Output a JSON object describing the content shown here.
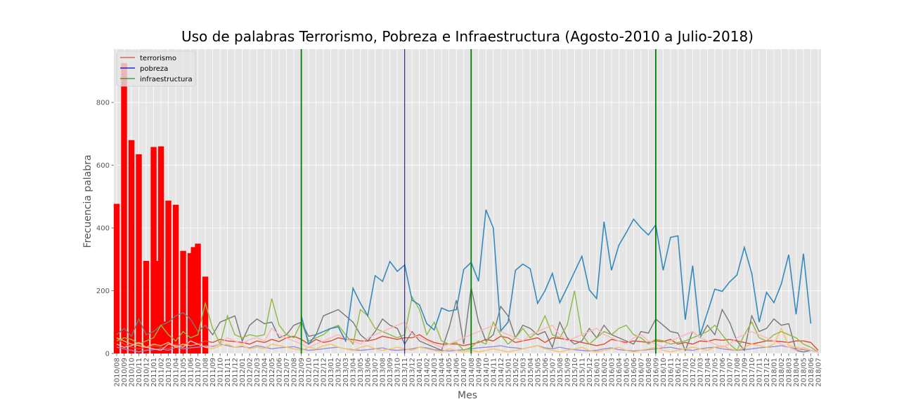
{
  "chart_data": {
    "type": "line",
    "title": "Uso de palabras Terrorismo, Pobreza e Infraestructura (Agosto-2010 a Julio-2018)",
    "xlabel": "Mes",
    "ylabel": "Frecuencia palabra",
    "ylim": [
      0,
      970
    ],
    "yticks": [
      0,
      200,
      400,
      600,
      800
    ],
    "grid": true,
    "legend_position": "top-left",
    "x_start": "2010/08",
    "x_end": "2018/07",
    "legend": [
      {
        "name": "terrorismo",
        "color": "#e24a33"
      },
      {
        "name": "pobreza",
        "color": "#0000cc"
      },
      {
        "name": "infraestructura",
        "color": "#2a8a2a"
      }
    ],
    "vlines": [
      {
        "x": "2012/09",
        "color": "#008000"
      },
      {
        "x": "2013/11",
        "color": "#00008b"
      },
      {
        "x": "2014/08",
        "color": "#008000"
      },
      {
        "x": "2016/09",
        "color": "#008000"
      }
    ],
    "bars": {
      "color": "#ff0000",
      "points": [
        {
          "x": "2010/08",
          "y": 477
        },
        {
          "x": "2010/09",
          "y": 925
        },
        {
          "x": "2010/10",
          "y": 680
        },
        {
          "x": "2010/11",
          "y": 635
        },
        {
          "x": "2010/12",
          "y": 295
        },
        {
          "x": "2011/01",
          "y": 658
        },
        {
          "x": "2011/01",
          "y": 295
        },
        {
          "x": "2011/02",
          "y": 660
        },
        {
          "x": "2011/02",
          "y": 102
        },
        {
          "x": "2011/03",
          "y": 487
        },
        {
          "x": "2011/04",
          "y": 474
        },
        {
          "x": "2011/05",
          "y": 327
        },
        {
          "x": "2011/06",
          "y": 320
        },
        {
          "x": "2011/06",
          "y": 339
        },
        {
          "x": "2011/07",
          "y": 350
        },
        {
          "x": "2011/08",
          "y": 245
        }
      ]
    },
    "series": [
      {
        "color": "#348abd",
        "values": [
          0,
          0,
          0,
          0,
          0,
          0,
          0,
          0,
          0,
          0,
          0,
          0,
          0,
          0,
          0,
          0,
          0,
          0,
          0,
          0,
          0,
          0,
          0,
          0,
          0,
          0,
          0,
          0,
          0,
          0,
          0,
          0,
          0,
          0,
          0,
          0,
          0,
          0,
          0,
          0,
          0,
          0,
          0,
          0,
          0,
          0,
          0,
          0,
          0,
          0,
          0,
          0,
          0,
          0,
          0,
          0,
          0,
          0,
          0,
          0,
          0,
          0,
          0,
          0,
          0,
          0,
          0,
          0,
          0,
          0,
          0,
          0,
          0,
          0,
          0,
          0,
          0,
          0,
          0,
          0,
          0,
          0,
          0,
          0,
          0,
          0,
          0,
          0,
          0,
          0,
          0,
          0,
          0,
          0,
          0,
          0
        ]
      },
      {
        "color": "#e24a33",
        "values": [
          50,
          30,
          20,
          15,
          20,
          25,
          20,
          15,
          30,
          25,
          40,
          30,
          40,
          35,
          45,
          40,
          38,
          35,
          30,
          40,
          35,
          45,
          38,
          50,
          55,
          45,
          30,
          45,
          35,
          40,
          50,
          45,
          45,
          40,
          40,
          45,
          55,
          50,
          45,
          50,
          50,
          60,
          45,
          35,
          30,
          30,
          30,
          25,
          30,
          35,
          45,
          40,
          55,
          50,
          35,
          40,
          45,
          50,
          35,
          50,
          48,
          45,
          40,
          35,
          30,
          25,
          30,
          45,
          40,
          35,
          40,
          38,
          35,
          40,
          38,
          45,
          30,
          35,
          30,
          40,
          38,
          45,
          42,
          45,
          40,
          35,
          30,
          35,
          40,
          40,
          38,
          35,
          40,
          40,
          35,
          10
        ]
      },
      {
        "color": "#988ed5",
        "values": [
          20,
          15,
          10,
          5,
          10,
          12,
          15,
          10,
          20,
          15,
          18,
          20,
          25,
          22,
          30,
          25,
          20,
          22,
          18,
          25,
          20,
          15,
          18,
          20,
          22,
          15,
          10,
          12,
          15,
          18,
          20,
          15,
          12,
          10,
          12,
          15,
          18,
          12,
          10,
          12,
          15,
          20,
          18,
          12,
          10,
          8,
          10,
          12,
          15,
          18,
          20,
          22,
          25,
          20,
          18,
          15,
          20,
          25,
          18,
          15,
          20,
          15,
          12,
          10,
          8,
          10,
          15,
          18,
          12,
          10,
          8,
          10,
          12,
          15,
          18,
          20,
          15,
          12,
          10,
          15,
          18,
          20,
          15,
          12,
          10,
          12,
          15,
          18,
          20,
          22,
          25,
          20,
          15,
          12,
          10,
          5
        ]
      },
      {
        "color": "#777777",
        "values": [
          60,
          80,
          55,
          110,
          60,
          70,
          90,
          100,
          120,
          130,
          110,
          70,
          90,
          60,
          100,
          110,
          120,
          40,
          90,
          110,
          95,
          100,
          50,
          60,
          90,
          100,
          55,
          60,
          120,
          130,
          140,
          120,
          100,
          60,
          40,
          70,
          110,
          90,
          80,
          30,
          70,
          40,
          30,
          20,
          10,
          80,
          170,
          30,
          210,
          100,
          40,
          60,
          150,
          120,
          50,
          90,
          80,
          60,
          70,
          20,
          100,
          50,
          30,
          40,
          80,
          50,
          90,
          60,
          50,
          40,
          30,
          70,
          65,
          110,
          90,
          70,
          65,
          10,
          70,
          50,
          90,
          60,
          140,
          100,
          40,
          10,
          120,
          70,
          80,
          110,
          90,
          95,
          10,
          5,
          10,
          5
        ]
      },
      {
        "color": "#fbc15e",
        "values": [
          50,
          40,
          30,
          25,
          20,
          30,
          25,
          35,
          20,
          30,
          25,
          30,
          20,
          15,
          25,
          30,
          20,
          25,
          15,
          20,
          15,
          30,
          25,
          20,
          15,
          10,
          20,
          15,
          25,
          30,
          20,
          15,
          10,
          20,
          25,
          15,
          10,
          15,
          20,
          15,
          10,
          20,
          15,
          10,
          5,
          15,
          10,
          5,
          10,
          5,
          10,
          15,
          10,
          5,
          10,
          15,
          20,
          25,
          15,
          10,
          5,
          10,
          15,
          20,
          10,
          5,
          10,
          15,
          20,
          10,
          5,
          10,
          15,
          20,
          10,
          5,
          10,
          15,
          20,
          15,
          10,
          20,
          25,
          15,
          10,
          20,
          30,
          25,
          20,
          30,
          80,
          25,
          20,
          15,
          10,
          5
        ]
      },
      {
        "color": "#8eba42",
        "values": [
          40,
          50,
          45,
          30,
          40,
          50,
          90,
          60,
          40,
          70,
          50,
          60,
          160,
          80,
          30,
          120,
          60,
          50,
          60,
          55,
          60,
          175,
          90,
          60,
          50,
          100,
          40,
          50,
          60,
          80,
          90,
          60,
          30,
          140,
          120,
          80,
          70,
          60,
          50,
          60,
          180,
          140,
          60,
          100,
          40,
          30,
          35,
          10,
          20,
          40,
          30,
          100,
          60,
          30,
          50,
          80,
          50,
          70,
          120,
          60,
          50,
          90,
          200,
          60,
          30,
          50,
          70,
          60,
          80,
          90,
          60,
          50,
          30,
          45,
          40,
          30,
          35,
          40,
          50,
          60,
          70,
          90,
          60,
          30,
          10,
          60,
          100,
          50,
          40,
          60,
          70,
          60,
          50,
          30,
          20,
          5
        ]
      },
      {
        "color": "#ffb5b8",
        "values": [
          30,
          20,
          25,
          35,
          20,
          15,
          10,
          30,
          25,
          20,
          40,
          30,
          20,
          25,
          30,
          50,
          40,
          30,
          45,
          50,
          40,
          80,
          60,
          50,
          40,
          30,
          20,
          30,
          40,
          50,
          60,
          45,
          40,
          30,
          50,
          60,
          70,
          80,
          90,
          100,
          60,
          50,
          40,
          30,
          20,
          30,
          40,
          50,
          60,
          70,
          80,
          90,
          70,
          60,
          50,
          40,
          60,
          70,
          80,
          90,
          60,
          40,
          50,
          60,
          70,
          80,
          60,
          50,
          40,
          30,
          50,
          60,
          40,
          30,
          20,
          40,
          50,
          60,
          70,
          50,
          40,
          30,
          20,
          30,
          50,
          60,
          70,
          60,
          50,
          40,
          30,
          20,
          10,
          20,
          10,
          5
        ]
      },
      {
        "color": "#348abd",
        "values": [
          0,
          0,
          0,
          0,
          0,
          0,
          0,
          0,
          0,
          0,
          0,
          0,
          0,
          0,
          0,
          0,
          0,
          0,
          0,
          0,
          0,
          0,
          0,
          0,
          0,
          0,
          0,
          0,
          0,
          0,
          0,
          0,
          0,
          0,
          0,
          0,
          0,
          0,
          0,
          0,
          0,
          0,
          0,
          0,
          0,
          0,
          0,
          0,
          0,
          0,
          0,
          0,
          0,
          0,
          0,
          0,
          0,
          0,
          0,
          0,
          0,
          0,
          0,
          0,
          0,
          0,
          0,
          0,
          0,
          0,
          0,
          0,
          0,
          0,
          0,
          0,
          0,
          0,
          0,
          0,
          0,
          0,
          0,
          0,
          0,
          0,
          0,
          0,
          0,
          0,
          0,
          0,
          0,
          0,
          0,
          0
        ]
      }
    ],
    "blue_series": {
      "color": "#348abd",
      "points": [
        {
          "x": "2012/09",
          "y": 120
        },
        {
          "x": "2012/10",
          "y": 30
        },
        {
          "x": "2012/11",
          "y": 60
        },
        {
          "x": "2012/12",
          "y": 70
        },
        {
          "x": "2013/01",
          "y": 80
        },
        {
          "x": "2013/02",
          "y": 85
        },
        {
          "x": "2013/03",
          "y": 40
        },
        {
          "x": "2013/04",
          "y": 208
        },
        {
          "x": "2013/05",
          "y": 160
        },
        {
          "x": "2013/06",
          "y": 120
        },
        {
          "x": "2013/07",
          "y": 248
        },
        {
          "x": "2013/08",
          "y": 230
        },
        {
          "x": "2013/09",
          "y": 293
        },
        {
          "x": "2013/10",
          "y": 262
        },
        {
          "x": "2013/11",
          "y": 282
        },
        {
          "x": "2013/12",
          "y": 170
        },
        {
          "x": "2014/01",
          "y": 155
        },
        {
          "x": "2014/02",
          "y": 95
        },
        {
          "x": "2014/03",
          "y": 75
        },
        {
          "x": "2014/04",
          "y": 145
        },
        {
          "x": "2014/05",
          "y": 135
        },
        {
          "x": "2014/06",
          "y": 140
        },
        {
          "x": "2014/07",
          "y": 268
        },
        {
          "x": "2014/08",
          "y": 290
        },
        {
          "x": "2014/09",
          "y": 230
        },
        {
          "x": "2014/10",
          "y": 458
        },
        {
          "x": "2014/11",
          "y": 400
        },
        {
          "x": "2014/12",
          "y": 72
        },
        {
          "x": "2015/01",
          "y": 100
        },
        {
          "x": "2015/02",
          "y": 265
        },
        {
          "x": "2015/03",
          "y": 285
        },
        {
          "x": "2015/04",
          "y": 270
        },
        {
          "x": "2015/05",
          "y": 160
        },
        {
          "x": "2015/06",
          "y": 200
        },
        {
          "x": "2015/07",
          "y": 255
        },
        {
          "x": "2015/08",
          "y": 162
        },
        {
          "x": "2015/09",
          "y": 210
        },
        {
          "x": "2015/10",
          "y": 260
        },
        {
          "x": "2015/11",
          "y": 310
        },
        {
          "x": "2015/12",
          "y": 203
        },
        {
          "x": "2016/01",
          "y": 175
        },
        {
          "x": "2016/02",
          "y": 420
        },
        {
          "x": "2016/03",
          "y": 265
        },
        {
          "x": "2016/04",
          "y": 345
        },
        {
          "x": "2016/05",
          "y": 385
        },
        {
          "x": "2016/06",
          "y": 428
        },
        {
          "x": "2016/07",
          "y": 400
        },
        {
          "x": "2016/08",
          "y": 378
        },
        {
          "x": "2016/09",
          "y": 410
        },
        {
          "x": "2016/10",
          "y": 265
        },
        {
          "x": "2016/11",
          "y": 370
        },
        {
          "x": "2016/12",
          "y": 375
        },
        {
          "x": "2017/01",
          "y": 108
        },
        {
          "x": "2017/02",
          "y": 280
        },
        {
          "x": "2017/03",
          "y": 58
        },
        {
          "x": "2017/04",
          "y": 130
        },
        {
          "x": "2017/05",
          "y": 205
        },
        {
          "x": "2017/06",
          "y": 198
        },
        {
          "x": "2017/07",
          "y": 228
        },
        {
          "x": "2017/08",
          "y": 250
        },
        {
          "x": "2017/09",
          "y": 338
        },
        {
          "x": "2017/10",
          "y": 255
        },
        {
          "x": "2017/11",
          "y": 100
        },
        {
          "x": "2017/12",
          "y": 195
        },
        {
          "x": "2018/01",
          "y": 162
        },
        {
          "x": "2018/02",
          "y": 222
        },
        {
          "x": "2018/03",
          "y": 315
        },
        {
          "x": "2018/04",
          "y": 125
        },
        {
          "x": "2018/05",
          "y": 318
        },
        {
          "x": "2018/06",
          "y": 95
        }
      ]
    }
  }
}
